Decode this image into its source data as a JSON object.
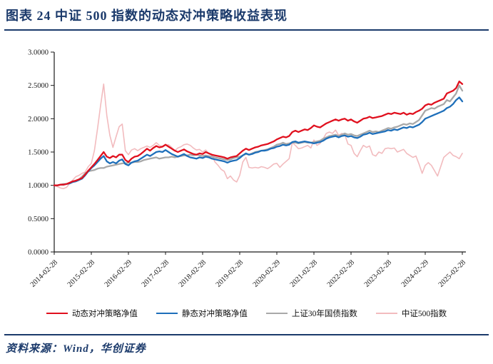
{
  "header": {
    "title": "图表 24  中证 500 指数的动态对冲策略收益表现"
  },
  "footer": {
    "source": "资料来源：Wind，华创证券"
  },
  "colors": {
    "accent_navy": "#1b3a6b",
    "series_red": "#e0101e",
    "series_blue": "#1e6fba",
    "series_gray": "#a9a9a9",
    "series_pink": "#f2bbbe",
    "axis": "#1a1a1a"
  },
  "chart_data": {
    "type": "line",
    "title": "",
    "xlabel": "",
    "ylabel": "",
    "ylim": [
      0,
      3
    ],
    "grid": false,
    "legend_position": "bottom",
    "y_ticks": [
      "0.0000",
      "0.5000",
      "1.0000",
      "1.5000",
      "2.0000",
      "2.5000",
      "3.0000"
    ],
    "x_ticks": [
      {
        "index": 0,
        "label": "2014-02-28"
      },
      {
        "index": 12,
        "label": "2015-02-28"
      },
      {
        "index": 24,
        "label": "2016-02-29"
      },
      {
        "index": 36,
        "label": "2017-02-28"
      },
      {
        "index": 48,
        "label": "2018-02-28"
      },
      {
        "index": 60,
        "label": "2019-02-28"
      },
      {
        "index": 72,
        "label": "2020-02-29"
      },
      {
        "index": 84,
        "label": "2021-02-28"
      },
      {
        "index": 96,
        "label": "2022-02-28"
      },
      {
        "index": 108,
        "label": "2023-02-28"
      },
      {
        "index": 120,
        "label": "2024-02-29"
      },
      {
        "index": 132,
        "label": "2025-02-28"
      }
    ],
    "x_start": "2014-02",
    "x_step": "1 month",
    "series": [
      {
        "name": "动态对冲策略净值",
        "color": "#e0101e",
        "width": 2.3,
        "values": [
          1.0,
          1.0,
          1.01,
          1.01,
          1.02,
          1.04,
          1.06,
          1.07,
          1.09,
          1.11,
          1.16,
          1.22,
          1.27,
          1.32,
          1.38,
          1.44,
          1.5,
          1.43,
          1.41,
          1.44,
          1.42,
          1.46,
          1.46,
          1.38,
          1.35,
          1.4,
          1.43,
          1.44,
          1.47,
          1.51,
          1.55,
          1.52,
          1.56,
          1.59,
          1.57,
          1.58,
          1.61,
          1.58,
          1.55,
          1.52,
          1.5,
          1.52,
          1.54,
          1.51,
          1.49,
          1.47,
          1.46,
          1.48,
          1.47,
          1.5,
          1.48,
          1.46,
          1.45,
          1.44,
          1.43,
          1.42,
          1.4,
          1.42,
          1.43,
          1.44,
          1.48,
          1.52,
          1.55,
          1.53,
          1.55,
          1.57,
          1.58,
          1.6,
          1.61,
          1.62,
          1.64,
          1.66,
          1.69,
          1.71,
          1.73,
          1.72,
          1.74,
          1.8,
          1.82,
          1.8,
          1.82,
          1.84,
          1.83,
          1.86,
          1.9,
          1.88,
          1.87,
          1.9,
          1.93,
          1.95,
          1.97,
          1.99,
          1.97,
          1.99,
          2.0,
          1.97,
          1.99,
          1.96,
          1.94,
          1.97,
          2.0,
          2.01,
          2.03,
          2.01,
          2.02,
          2.03,
          2.04,
          2.06,
          2.08,
          2.07,
          2.09,
          2.08,
          2.07,
          2.09,
          2.06,
          2.08,
          2.07,
          2.1,
          2.12,
          2.15,
          2.2,
          2.22,
          2.21,
          2.24,
          2.26,
          2.28,
          2.3,
          2.38,
          2.4,
          2.42,
          2.46,
          2.56,
          2.52
        ]
      },
      {
        "name": "静态对冲策略净值",
        "color": "#1e6fba",
        "width": 2.3,
        "values": [
          1.0,
          1.0,
          1.01,
          1.01,
          1.02,
          1.03,
          1.05,
          1.06,
          1.08,
          1.1,
          1.15,
          1.21,
          1.26,
          1.3,
          1.35,
          1.4,
          1.44,
          1.36,
          1.33,
          1.35,
          1.33,
          1.37,
          1.39,
          1.32,
          1.3,
          1.34,
          1.36,
          1.37,
          1.4,
          1.43,
          1.46,
          1.44,
          1.47,
          1.5,
          1.51,
          1.5,
          1.53,
          1.5,
          1.47,
          1.45,
          1.43,
          1.45,
          1.47,
          1.44,
          1.42,
          1.41,
          1.4,
          1.42,
          1.41,
          1.43,
          1.42,
          1.4,
          1.39,
          1.38,
          1.37,
          1.36,
          1.34,
          1.36,
          1.37,
          1.38,
          1.41,
          1.45,
          1.48,
          1.46,
          1.47,
          1.49,
          1.5,
          1.52,
          1.52,
          1.53,
          1.55,
          1.56,
          1.58,
          1.59,
          1.61,
          1.6,
          1.61,
          1.65,
          1.66,
          1.64,
          1.65,
          1.66,
          1.65,
          1.64,
          1.63,
          1.64,
          1.65,
          1.67,
          1.7,
          1.72,
          1.73,
          1.74,
          1.72,
          1.74,
          1.75,
          1.73,
          1.74,
          1.72,
          1.71,
          1.73,
          1.76,
          1.77,
          1.79,
          1.77,
          1.78,
          1.79,
          1.8,
          1.81,
          1.83,
          1.82,
          1.84,
          1.83,
          1.85,
          1.87,
          1.86,
          1.88,
          1.87,
          1.89,
          1.91,
          1.95,
          2.0,
          2.02,
          2.04,
          2.06,
          2.08,
          2.1,
          2.12,
          2.16,
          2.18,
          2.22,
          2.28,
          2.32,
          2.26
        ]
      },
      {
        "name": "上证30年国债指数",
        "color": "#a9a9a9",
        "width": 2.3,
        "values": [
          1.0,
          1.0,
          1.01,
          1.02,
          1.02,
          1.03,
          1.05,
          1.07,
          1.09,
          1.13,
          1.18,
          1.21,
          1.22,
          1.23,
          1.25,
          1.26,
          1.26,
          1.28,
          1.29,
          1.3,
          1.31,
          1.32,
          1.33,
          1.33,
          1.34,
          1.34,
          1.35,
          1.35,
          1.36,
          1.38,
          1.39,
          1.4,
          1.41,
          1.42,
          1.4,
          1.41,
          1.42,
          1.42,
          1.43,
          1.42,
          1.43,
          1.44,
          1.45,
          1.45,
          1.46,
          1.45,
          1.46,
          1.45,
          1.44,
          1.45,
          1.44,
          1.43,
          1.42,
          1.41,
          1.4,
          1.39,
          1.38,
          1.39,
          1.41,
          1.42,
          1.43,
          1.45,
          1.47,
          1.46,
          1.48,
          1.5,
          1.51,
          1.52,
          1.53,
          1.54,
          1.56,
          1.58,
          1.61,
          1.62,
          1.64,
          1.62,
          1.63,
          1.64,
          1.64,
          1.63,
          1.64,
          1.65,
          1.64,
          1.64,
          1.65,
          1.66,
          1.67,
          1.7,
          1.72,
          1.74,
          1.75,
          1.76,
          1.74,
          1.76,
          1.78,
          1.76,
          1.77,
          1.75,
          1.74,
          1.76,
          1.78,
          1.8,
          1.82,
          1.8,
          1.81,
          1.8,
          1.82,
          1.84,
          1.86,
          1.85,
          1.87,
          1.88,
          1.9,
          1.92,
          1.91,
          1.93,
          1.92,
          1.95,
          1.98,
          2.05,
          2.12,
          2.14,
          2.16,
          2.15,
          2.18,
          2.2,
          2.22,
          2.28,
          2.26,
          2.32,
          2.38,
          2.5,
          2.42
        ]
      },
      {
        "name": "中证500指数",
        "color": "#f2bbbe",
        "width": 1.6,
        "values": [
          1.0,
          0.98,
          0.96,
          0.95,
          0.97,
          1.03,
          1.08,
          1.13,
          1.15,
          1.18,
          1.2,
          1.28,
          1.33,
          1.52,
          1.85,
          2.2,
          2.52,
          2.05,
          1.75,
          1.57,
          1.73,
          1.88,
          1.92,
          1.52,
          1.46,
          1.53,
          1.55,
          1.52,
          1.55,
          1.57,
          1.59,
          1.57,
          1.6,
          1.64,
          1.6,
          1.58,
          1.6,
          1.61,
          1.57,
          1.52,
          1.56,
          1.58,
          1.61,
          1.62,
          1.6,
          1.56,
          1.53,
          1.54,
          1.5,
          1.53,
          1.48,
          1.45,
          1.35,
          1.3,
          1.24,
          1.21,
          1.1,
          1.14,
          1.08,
          1.05,
          1.15,
          1.35,
          1.42,
          1.27,
          1.26,
          1.27,
          1.26,
          1.28,
          1.27,
          1.25,
          1.28,
          1.32,
          1.33,
          1.27,
          1.32,
          1.36,
          1.4,
          1.64,
          1.6,
          1.55,
          1.56,
          1.58,
          1.6,
          1.56,
          1.68,
          1.6,
          1.63,
          1.7,
          1.78,
          1.8,
          1.78,
          1.83,
          1.75,
          1.78,
          1.76,
          1.62,
          1.6,
          1.48,
          1.43,
          1.52,
          1.6,
          1.57,
          1.59,
          1.46,
          1.44,
          1.5,
          1.48,
          1.55,
          1.56,
          1.55,
          1.56,
          1.5,
          1.52,
          1.54,
          1.48,
          1.45,
          1.42,
          1.44,
          1.32,
          1.18,
          1.3,
          1.34,
          1.3,
          1.22,
          1.14,
          1.28,
          1.42,
          1.46,
          1.5,
          1.45,
          1.43,
          1.4,
          1.48
        ]
      }
    ]
  }
}
